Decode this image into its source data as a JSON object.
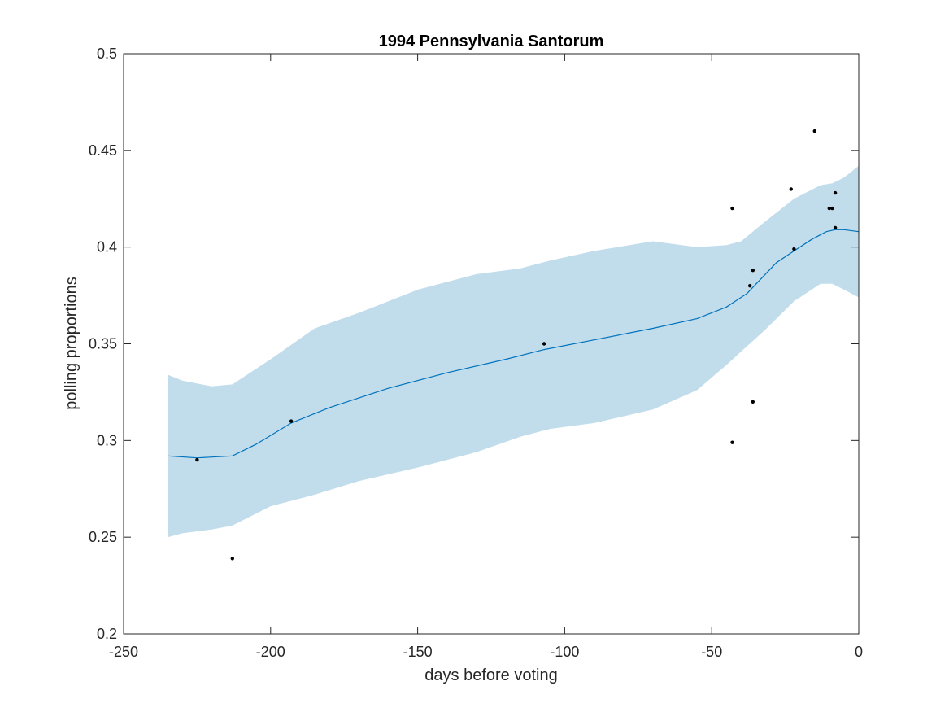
{
  "chart_data": {
    "type": "line",
    "title": "1994 Pennsylvania Santorum",
    "xlabel": "days before voting",
    "ylabel": "polling proportions",
    "xlim": [
      -250,
      0
    ],
    "ylim": [
      0.2,
      0.5
    ],
    "xticks": [
      -250,
      -200,
      -150,
      -100,
      -50,
      0
    ],
    "xtick_labels": [
      "-250",
      "-200",
      "-150",
      "-100",
      "-50",
      "0"
    ],
    "yticks": [
      0.2,
      0.25,
      0.3,
      0.35,
      0.4,
      0.45,
      0.5
    ],
    "ytick_labels": [
      "0.2",
      "0.25",
      "0.3",
      "0.35",
      "0.4",
      "0.45",
      "0.5"
    ],
    "grid": false,
    "colors": {
      "band": "#c1ddec",
      "line": "#0072bd",
      "points": "#000000",
      "axes": "#262626"
    },
    "band": {
      "x": [
        -235,
        -230,
        -220,
        -213,
        -200,
        -185,
        -170,
        -150,
        -130,
        -115,
        -105,
        -90,
        -70,
        -55,
        -45,
        -40,
        -32,
        -22,
        -13,
        -9,
        -5,
        0
      ],
      "upper": [
        0.334,
        0.331,
        0.328,
        0.329,
        0.342,
        0.358,
        0.366,
        0.378,
        0.386,
        0.389,
        0.393,
        0.398,
        0.403,
        0.4,
        0.401,
        0.403,
        0.413,
        0.425,
        0.432,
        0.433,
        0.436,
        0.442
      ],
      "lower": [
        0.25,
        0.252,
        0.254,
        0.256,
        0.266,
        0.272,
        0.279,
        0.286,
        0.294,
        0.302,
        0.306,
        0.309,
        0.316,
        0.326,
        0.339,
        0.346,
        0.357,
        0.372,
        0.381,
        0.381,
        0.378,
        0.374
      ]
    },
    "series": [
      {
        "x": [
          -235,
          -225,
          -213,
          -205,
          -193,
          -180,
          -160,
          -140,
          -120,
          -107,
          -90,
          -70,
          -55,
          -45,
          -38,
          -33,
          -28,
          -22,
          -16,
          -11,
          -8,
          -5,
          0
        ],
        "y": [
          0.292,
          0.291,
          0.292,
          0.298,
          0.309,
          0.317,
          0.327,
          0.335,
          0.342,
          0.347,
          0.352,
          0.358,
          0.363,
          0.369,
          0.376,
          0.384,
          0.392,
          0.398,
          0.404,
          0.408,
          0.409,
          0.409,
          0.408
        ]
      }
    ],
    "points": {
      "x": [
        -225,
        -213,
        -193,
        -107,
        -43,
        -43,
        -37,
        -36,
        -36,
        -23,
        -22,
        -15,
        -10,
        -9,
        -8,
        -8
      ],
      "y": [
        0.29,
        0.239,
        0.31,
        0.35,
        0.42,
        0.299,
        0.38,
        0.388,
        0.32,
        0.43,
        0.399,
        0.46,
        0.42,
        0.42,
        0.428,
        0.41
      ]
    }
  }
}
